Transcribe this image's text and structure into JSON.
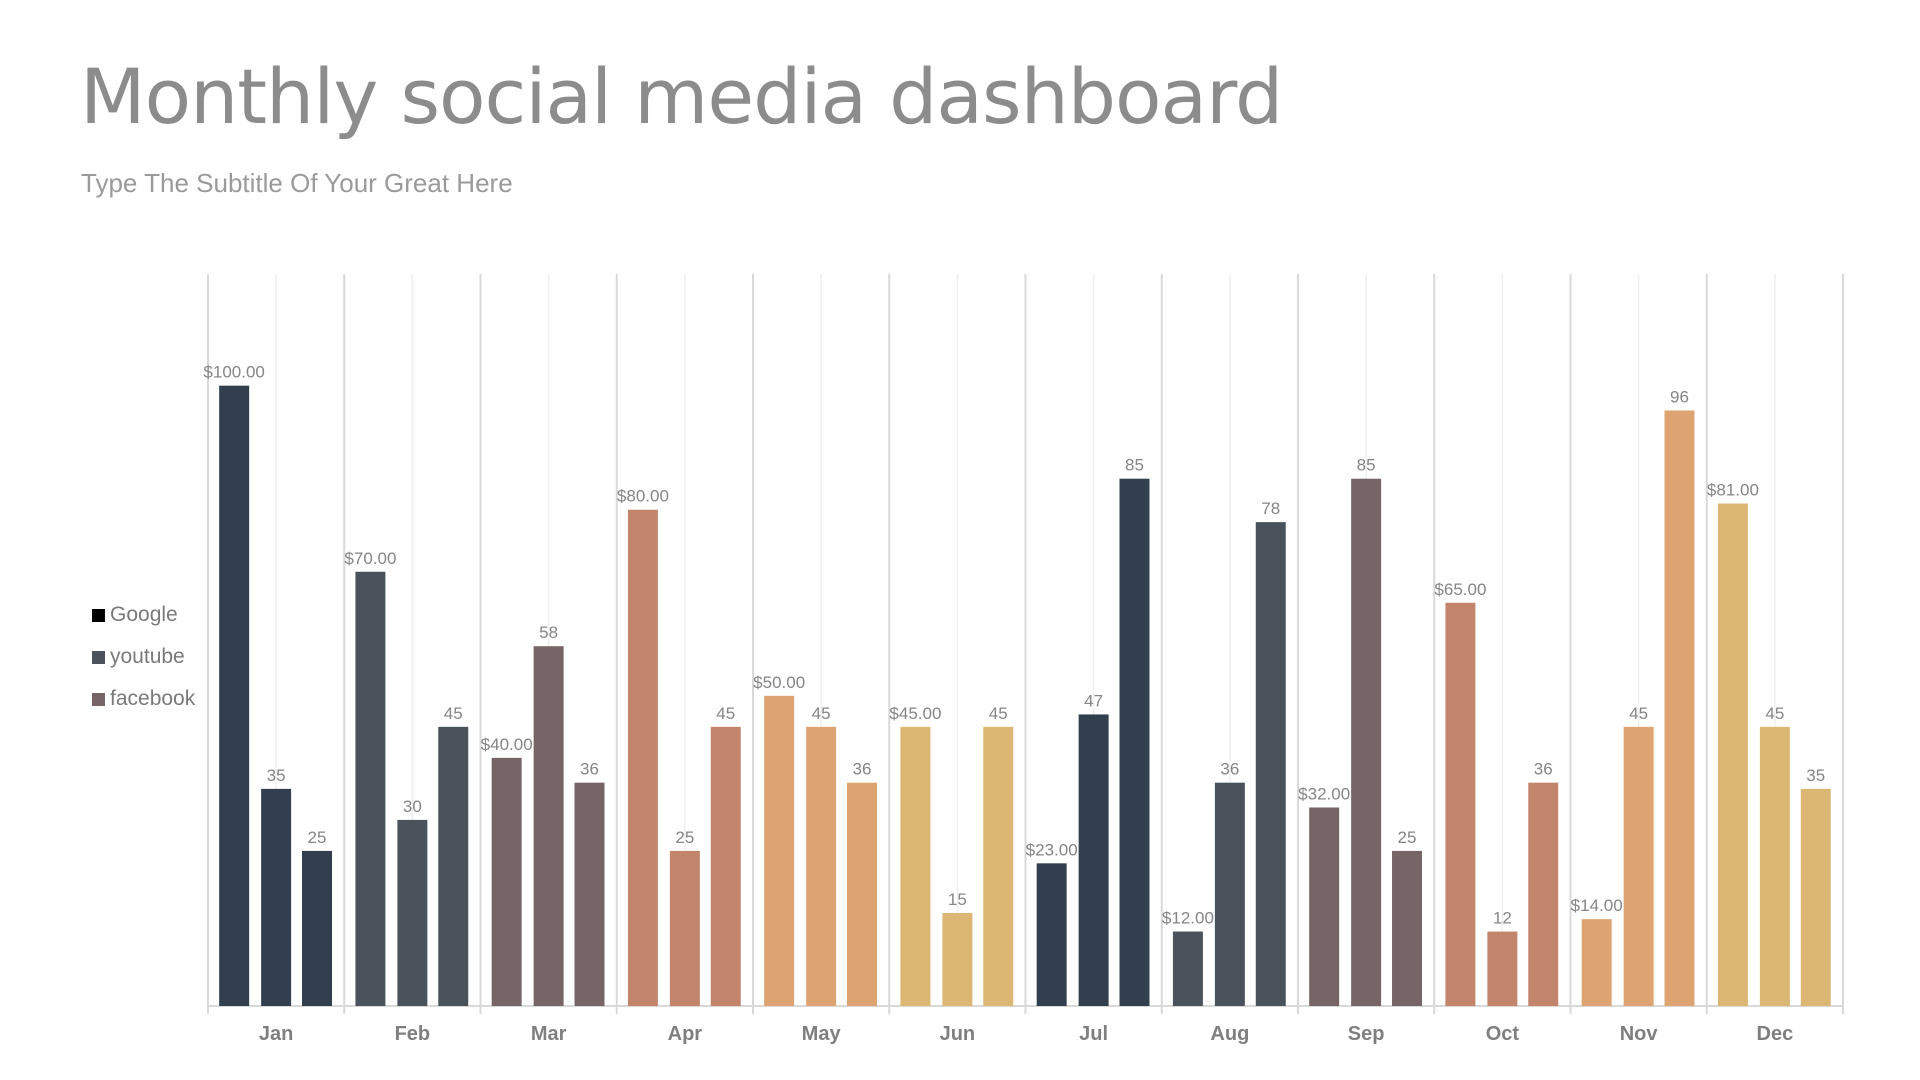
{
  "chart_data": {
    "type": "bar",
    "title": "Monthly social media dashboard",
    "subtitle": "Type The Subtitle Of Your Great Here",
    "categories": [
      "Jan",
      "Feb",
      "Mar",
      "Apr",
      "May",
      "Jun",
      "Jul",
      "Aug",
      "Sep",
      "Oct",
      "Nov",
      "Dec"
    ],
    "series": [
      {
        "name": "Google",
        "values": [
          100,
          70,
          40,
          80,
          50,
          45,
          23,
          12,
          32,
          65,
          14,
          81
        ]
      },
      {
        "name": "youtube",
        "values": [
          35,
          30,
          58,
          25,
          45,
          15,
          47,
          36,
          85,
          12,
          45,
          45
        ]
      },
      {
        "name": "facebook",
        "values": [
          25,
          45,
          36,
          45,
          36,
          45,
          85,
          78,
          25,
          36,
          96,
          35
        ]
      }
    ],
    "label_format_first_series": "$#.00",
    "month_colors": [
      "#323f4f",
      "#4a525c",
      "#776466",
      "#c3846c",
      "#dda472",
      "#dcb773",
      "#323f4f",
      "#4a525c",
      "#776466",
      "#c3846c",
      "#dda472",
      "#dcb773"
    ],
    "legend_colors": [
      "#000000",
      "#4a525c",
      "#776466"
    ],
    "legend_position": "left",
    "ylim": [
      0,
      118
    ],
    "y_axis_visible": false,
    "grid": "vertical category separators"
  }
}
